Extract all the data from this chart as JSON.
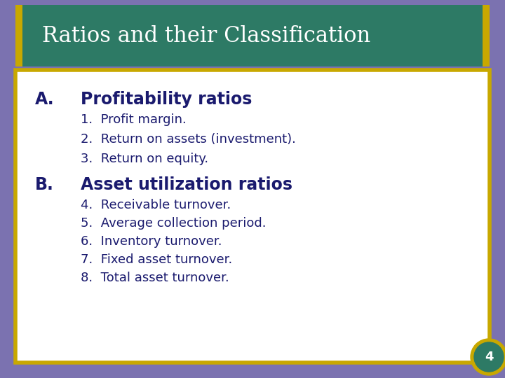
{
  "title": "Ratios and their Classification",
  "title_color": "#ffffff",
  "title_bg_color": "#2d7a65",
  "title_font_size": 22,
  "slide_bg_color": "#7b72b0",
  "content_bg_color": "#ffffff",
  "border_color": "#c8a800",
  "section_a_label": "A.",
  "section_a_title": "Profitability ratios",
  "section_b_label": "B.",
  "section_b_title": "Asset utilization ratios",
  "section_color": "#1a1a6e",
  "items_a": [
    "1.  Profit margin.",
    "2.  Return on assets (investment).",
    "3.  Return on equity."
  ],
  "items_b": [
    "4.  Receivable turnover.",
    "5.  Average collection period.",
    "6.  Inventory turnover.",
    "7.  Fixed asset turnover.",
    "8.  Total asset turnover."
  ],
  "item_color": "#1a1a6e",
  "item_font_size": 13,
  "section_font_size": 17,
  "corner_number": "4",
  "corner_bg_color": "#2d7a65",
  "corner_text_color": "#ffffff"
}
